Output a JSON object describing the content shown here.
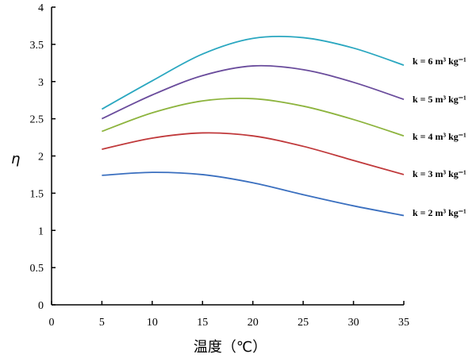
{
  "chart_data": {
    "type": "line",
    "title": "",
    "xlabel": "温度（℃）",
    "ylabel": "η",
    "xlim": [
      0,
      35
    ],
    "ylim": [
      0,
      4
    ],
    "xticks": [
      "0",
      "5",
      "10",
      "15",
      "20",
      "25",
      "30",
      "35"
    ],
    "yticks": [
      "0",
      "0.5",
      "1",
      "1.5",
      "2",
      "2.5",
      "3",
      "3.5",
      "4"
    ],
    "grid": false,
    "legend_placement": "right, inline labels at line ends",
    "x": [
      5,
      10,
      15,
      20,
      25,
      30,
      35
    ],
    "series": [
      {
        "name": "k = 6 m³ kg⁻¹",
        "color": "#2aa7c0",
        "values": [
          2.63,
          3.01,
          3.37,
          3.58,
          3.59,
          3.45,
          3.22
        ]
      },
      {
        "name": "k = 5 m³ kg⁻¹",
        "color": "#6a4c9c",
        "values": [
          2.5,
          2.82,
          3.08,
          3.21,
          3.16,
          2.99,
          2.76
        ]
      },
      {
        "name": "k = 4 m³ kg⁻¹",
        "color": "#8db43e",
        "values": [
          2.33,
          2.58,
          2.74,
          2.77,
          2.67,
          2.49,
          2.27
        ]
      },
      {
        "name": "k = 3 m³ kg⁻¹",
        "color": "#c0393b",
        "values": [
          2.09,
          2.24,
          2.31,
          2.27,
          2.13,
          1.94,
          1.75
        ]
      },
      {
        "name": "k = 2 m³ kg⁻¹",
        "color": "#3a6fbf",
        "values": [
          1.74,
          1.78,
          1.75,
          1.64,
          1.48,
          1.33,
          1.2
        ]
      }
    ]
  }
}
